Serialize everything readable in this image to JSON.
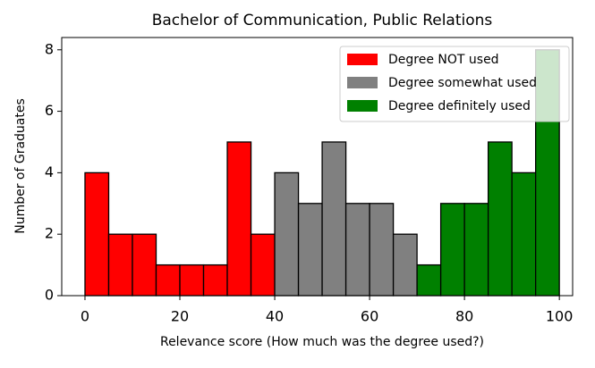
{
  "chart_data": {
    "type": "histogram",
    "title": "Bachelor of Communication, Public Relations",
    "x_label": "Relevance score (How much was the degree used?)",
    "y_label": "Number of Graduates",
    "series": [
      {
        "name": "Degree NOT used",
        "color": "#ff0000",
        "bins": [
          0,
          5,
          10,
          15,
          20,
          25,
          30,
          35,
          40
        ],
        "values": [
          4,
          2,
          2,
          1,
          1,
          1,
          5,
          2
        ]
      },
      {
        "name": "Degree somewhat used",
        "color": "#808080",
        "bins": [
          40,
          45,
          50,
          55,
          60,
          65,
          70
        ],
        "values": [
          4,
          3,
          5,
          3,
          3,
          2
        ]
      },
      {
        "name": "Degree definitely used",
        "color": "#008000",
        "bins": [
          70,
          75,
          80,
          85,
          90,
          95,
          100
        ],
        "values": [
          1,
          3,
          3,
          5,
          4,
          8
        ]
      }
    ],
    "xlim": [
      -4.9,
      102.8
    ],
    "ylim": [
      0,
      8.4
    ],
    "xticks": [
      0,
      20,
      40,
      60,
      80,
      100
    ],
    "yticks": [
      0,
      2,
      4,
      6,
      8
    ],
    "legend": "upper right"
  }
}
